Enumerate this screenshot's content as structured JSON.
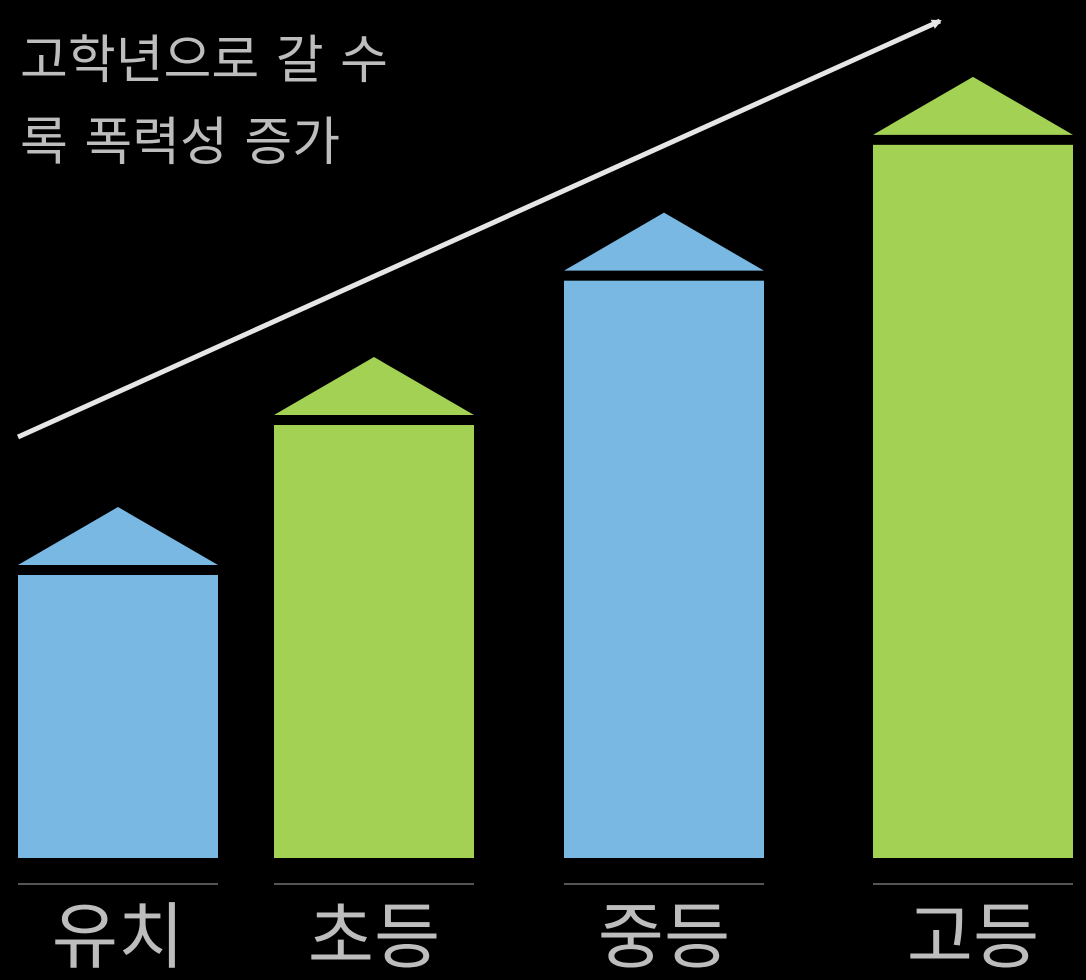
{
  "chart_data": {
    "type": "bar",
    "title_lines": [
      "고학년으로 갈 수",
      "록 폭력성 증가"
    ],
    "categories": [
      "유치",
      "초등",
      "중등",
      "고등"
    ],
    "values": [
      1,
      1.53,
      2.04,
      2.52
    ],
    "colors": [
      "#78b8e2",
      "#a3d153",
      "#78b8e2",
      "#a3d153"
    ],
    "arrow_color": "#e6e6e6",
    "label_color": "#bdbdbd",
    "grid": false,
    "legend": "none"
  }
}
